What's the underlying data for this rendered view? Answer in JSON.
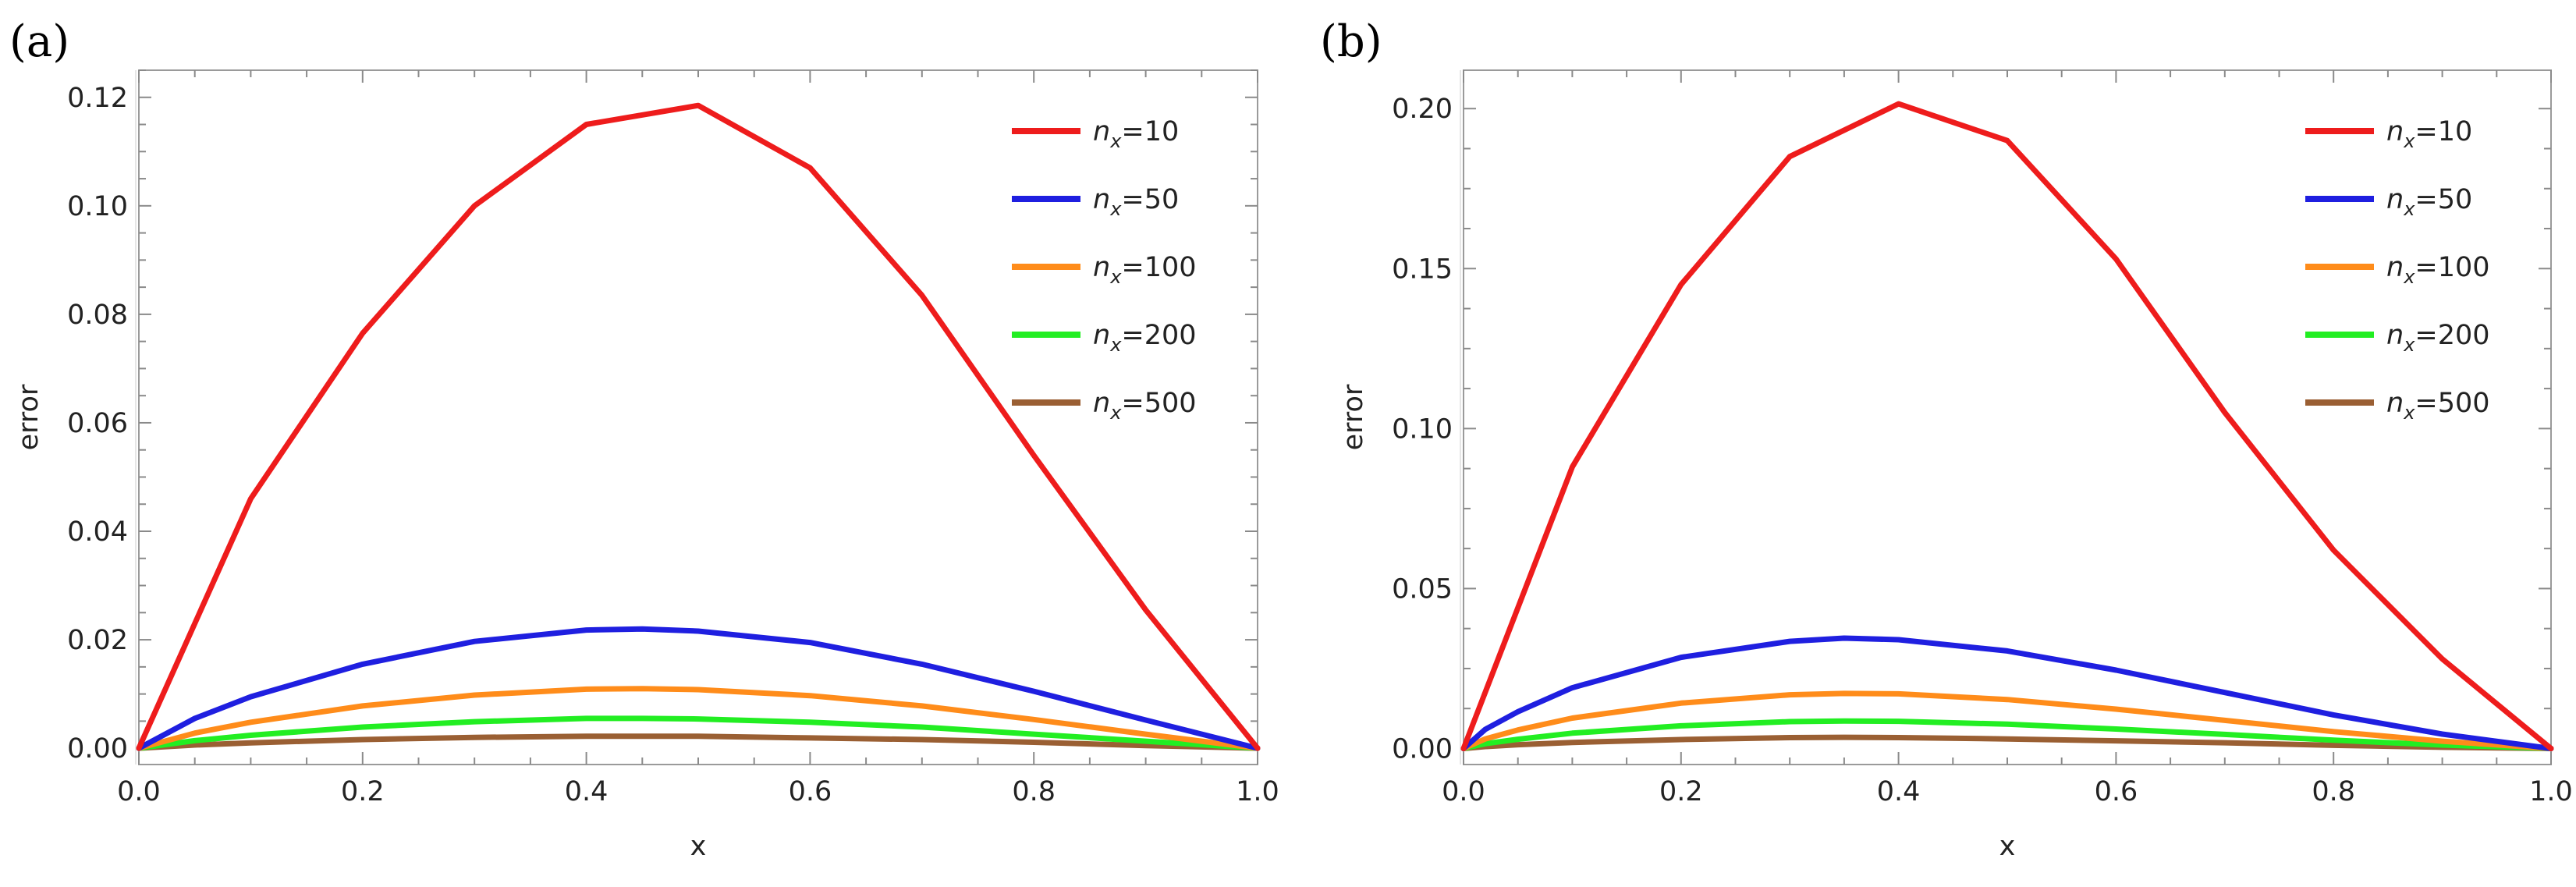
{
  "chart_data": [
    {
      "type": "line",
      "panel_label": "(a)",
      "xlabel": "x",
      "ylabel": "error",
      "xlim": [
        0,
        1
      ],
      "ylim": [
        -0.003,
        0.125
      ],
      "xticks": [
        0.0,
        0.2,
        0.4,
        0.6,
        0.8,
        1.0
      ],
      "xtick_labels": [
        "0.0",
        "0.2",
        "0.4",
        "0.6",
        "0.8",
        "1.0"
      ],
      "yticks": [
        0.0,
        0.02,
        0.04,
        0.06,
        0.08,
        0.1,
        0.12
      ],
      "ytick_labels": [
        "0.00",
        "0.02",
        "0.04",
        "0.06",
        "0.08",
        "0.10",
        "0.12"
      ],
      "legend_position": "top-right",
      "series": [
        {
          "name": "n_x=10",
          "legend_base": "n",
          "legend_sub": "x",
          "legend_value": "=10",
          "color": "#ee1c1c",
          "x": [
            0,
            0.1,
            0.2,
            0.3,
            0.4,
            0.5,
            0.6,
            0.7,
            0.8,
            0.9,
            1.0
          ],
          "y": [
            0,
            0.046,
            0.0765,
            0.1,
            0.115,
            0.1185,
            0.107,
            0.0835,
            0.054,
            0.0255,
            0
          ]
        },
        {
          "name": "n_x=50",
          "legend_base": "n",
          "legend_sub": "x",
          "legend_value": "=50",
          "color": "#1f1fe0",
          "x": [
            0,
            0.05,
            0.1,
            0.2,
            0.3,
            0.4,
            0.45,
            0.5,
            0.6,
            0.7,
            0.8,
            0.9,
            1.0
          ],
          "y": [
            0,
            0.0055,
            0.0095,
            0.0155,
            0.0197,
            0.0218,
            0.022,
            0.0216,
            0.0195,
            0.0155,
            0.0105,
            0.0052,
            0
          ]
        },
        {
          "name": "n_x=100",
          "legend_base": "n",
          "legend_sub": "x",
          "legend_value": "=100",
          "color": "#ff8c1a",
          "x": [
            0,
            0.05,
            0.1,
            0.2,
            0.3,
            0.4,
            0.45,
            0.5,
            0.6,
            0.7,
            0.8,
            0.9,
            1.0
          ],
          "y": [
            0,
            0.0028,
            0.0048,
            0.0078,
            0.0098,
            0.0109,
            0.011,
            0.0108,
            0.0097,
            0.0078,
            0.0053,
            0.0026,
            0
          ]
        },
        {
          "name": "n_x=200",
          "legend_base": "n",
          "legend_sub": "x",
          "legend_value": "=200",
          "color": "#22ee22",
          "x": [
            0,
            0.05,
            0.1,
            0.2,
            0.3,
            0.4,
            0.45,
            0.5,
            0.6,
            0.7,
            0.8,
            0.9,
            1.0
          ],
          "y": [
            0,
            0.0014,
            0.0024,
            0.0039,
            0.0049,
            0.0055,
            0.0055,
            0.0054,
            0.0048,
            0.0039,
            0.0026,
            0.0013,
            0
          ]
        },
        {
          "name": "n_x=500",
          "legend_base": "n",
          "legend_sub": "x",
          "legend_value": "=500",
          "color": "#9a5f33",
          "x": [
            0,
            0.05,
            0.1,
            0.2,
            0.3,
            0.4,
            0.45,
            0.5,
            0.6,
            0.7,
            0.8,
            0.9,
            1.0
          ],
          "y": [
            0,
            0.0006,
            0.001,
            0.0016,
            0.002,
            0.0022,
            0.0022,
            0.0022,
            0.0019,
            0.0016,
            0.0011,
            0.0005,
            0
          ]
        }
      ]
    },
    {
      "type": "line",
      "panel_label": "(b)",
      "xlabel": "x",
      "ylabel": "error",
      "xlim": [
        0,
        1
      ],
      "ylim": [
        -0.005,
        0.212
      ],
      "xticks": [
        0.0,
        0.2,
        0.4,
        0.6,
        0.8,
        1.0
      ],
      "xtick_labels": [
        "0.0",
        "0.2",
        "0.4",
        "0.6",
        "0.8",
        "1.0"
      ],
      "yticks": [
        0.0,
        0.05,
        0.1,
        0.15,
        0.2
      ],
      "ytick_labels": [
        "0.00",
        "0.05",
        "0.10",
        "0.15",
        "0.20"
      ],
      "legend_position": "top-right",
      "series": [
        {
          "name": "n_x=10",
          "legend_base": "n",
          "legend_sub": "x",
          "legend_value": "=10",
          "color": "#ee1c1c",
          "x": [
            0,
            0.1,
            0.2,
            0.3,
            0.4,
            0.5,
            0.6,
            0.7,
            0.8,
            0.9,
            1.0
          ],
          "y": [
            0,
            0.088,
            0.145,
            0.185,
            0.2015,
            0.19,
            0.153,
            0.105,
            0.062,
            0.028,
            0
          ]
        },
        {
          "name": "n_x=50",
          "legend_base": "n",
          "legend_sub": "x",
          "legend_value": "=50",
          "color": "#1f1fe0",
          "x": [
            0,
            0.02,
            0.05,
            0.1,
            0.2,
            0.3,
            0.35,
            0.4,
            0.5,
            0.6,
            0.7,
            0.8,
            0.9,
            1.0
          ],
          "y": [
            0,
            0.006,
            0.0115,
            0.019,
            0.0285,
            0.0335,
            0.0345,
            0.034,
            0.0305,
            0.0245,
            0.0175,
            0.0105,
            0.0045,
            0
          ]
        },
        {
          "name": "n_x=100",
          "legend_base": "n",
          "legend_sub": "x",
          "legend_value": "=100",
          "color": "#ff8c1a",
          "x": [
            0,
            0.02,
            0.05,
            0.1,
            0.2,
            0.3,
            0.35,
            0.4,
            0.5,
            0.6,
            0.7,
            0.8,
            0.9,
            1.0
          ],
          "y": [
            0,
            0.003,
            0.0058,
            0.0095,
            0.0142,
            0.0168,
            0.0172,
            0.0171,
            0.0153,
            0.0123,
            0.0088,
            0.0053,
            0.0023,
            0
          ]
        },
        {
          "name": "n_x=200",
          "legend_base": "n",
          "legend_sub": "x",
          "legend_value": "=200",
          "color": "#22ee22",
          "x": [
            0,
            0.02,
            0.05,
            0.1,
            0.2,
            0.3,
            0.35,
            0.4,
            0.5,
            0.6,
            0.7,
            0.8,
            0.9,
            1.0
          ],
          "y": [
            0,
            0.0015,
            0.0029,
            0.0048,
            0.0071,
            0.0084,
            0.0086,
            0.0085,
            0.0076,
            0.0061,
            0.0044,
            0.0026,
            0.0011,
            0
          ]
        },
        {
          "name": "n_x=500",
          "legend_base": "n",
          "legend_sub": "x",
          "legend_value": "=500",
          "color": "#9a5f33",
          "x": [
            0,
            0.02,
            0.05,
            0.1,
            0.2,
            0.3,
            0.35,
            0.4,
            0.5,
            0.6,
            0.7,
            0.8,
            0.9,
            1.0
          ],
          "y": [
            0,
            0.0006,
            0.0012,
            0.0019,
            0.0028,
            0.0034,
            0.0035,
            0.0034,
            0.003,
            0.0024,
            0.0018,
            0.001,
            0.0004,
            0
          ]
        }
      ]
    }
  ]
}
